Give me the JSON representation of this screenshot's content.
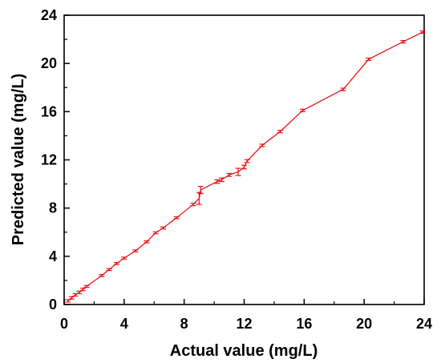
{
  "chart_data": {
    "type": "line",
    "title": "",
    "xlabel": "Actual value (mg/L)",
    "ylabel": "Predicted value (mg/L)",
    "xlim": [
      0,
      24
    ],
    "ylim": [
      0,
      24
    ],
    "xticks": [
      0,
      4,
      8,
      12,
      16,
      20,
      24
    ],
    "yticks": [
      0,
      4,
      8,
      12,
      16,
      20,
      24
    ],
    "grid": false,
    "legend": "none",
    "series": [
      {
        "color": "#e8141b",
        "marker": "error-bar",
        "x": [
          0.25,
          0.5,
          0.75,
          1.0,
          1.25,
          1.5,
          2.5,
          3.0,
          3.5,
          4.0,
          4.75,
          5.5,
          6.1,
          6.6,
          7.5,
          8.6,
          9.0,
          9.1,
          10.2,
          10.5,
          11.0,
          11.6,
          12.0,
          12.2,
          13.2,
          14.4,
          15.9,
          18.6,
          20.3,
          22.6,
          23.9
        ],
        "y": [
          0.3,
          0.55,
          0.8,
          1.0,
          1.25,
          1.5,
          2.4,
          2.9,
          3.4,
          3.85,
          4.45,
          5.2,
          5.95,
          6.35,
          7.2,
          8.3,
          8.8,
          9.5,
          10.2,
          10.35,
          10.75,
          11.0,
          11.4,
          11.9,
          13.2,
          14.35,
          16.1,
          17.85,
          20.35,
          21.8,
          22.6
        ],
        "err": [
          0.1,
          0.1,
          0.1,
          0.1,
          0.1,
          0.08,
          0.08,
          0.08,
          0.08,
          0.08,
          0.08,
          0.08,
          0.08,
          0.08,
          0.08,
          0.1,
          0.5,
          0.3,
          0.15,
          0.15,
          0.12,
          0.3,
          0.15,
          0.12,
          0.1,
          0.1,
          0.1,
          0.1,
          0.1,
          0.1,
          0.1
        ]
      }
    ]
  }
}
